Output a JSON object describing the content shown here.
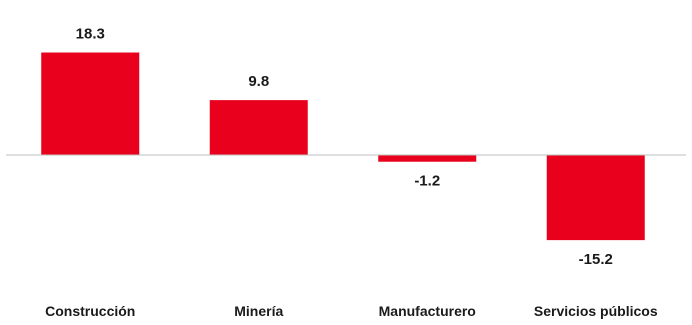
{
  "chart_data": {
    "type": "bar",
    "categories": [
      "Construcción",
      "Minería",
      "Manufacturero",
      "Servicios públicos"
    ],
    "values": [
      18.3,
      9.8,
      -1.2,
      -15.2
    ],
    "data_labels": [
      "18.3",
      "9.8",
      "-1.2",
      "-15.2"
    ],
    "bar_color": "#e8001c",
    "axis_color": "#bfbfbf",
    "grid": false,
    "legend": "none"
  }
}
